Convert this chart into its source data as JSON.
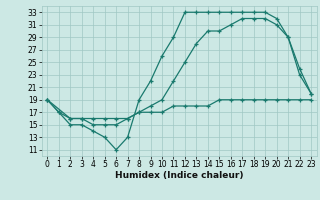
{
  "title": "",
  "xlabel": "Humidex (Indice chaleur)",
  "bg_color": "#cce8e4",
  "grid_color": "#a0c8c4",
  "line_color": "#1a7a6e",
  "xlim": [
    -0.5,
    23.5
  ],
  "ylim": [
    10,
    34
  ],
  "xticks": [
    0,
    1,
    2,
    3,
    4,
    5,
    6,
    7,
    8,
    9,
    10,
    11,
    12,
    13,
    14,
    15,
    16,
    17,
    18,
    19,
    20,
    21,
    22,
    23
  ],
  "yticks": [
    11,
    13,
    15,
    17,
    19,
    21,
    23,
    25,
    27,
    29,
    31,
    33
  ],
  "line1_x": [
    0,
    1,
    2,
    3,
    4,
    5,
    6,
    7,
    8,
    9,
    10,
    11,
    12,
    13,
    14,
    15,
    16,
    17,
    18,
    19,
    20,
    21,
    22,
    23
  ],
  "line1_y": [
    19,
    17,
    15,
    15,
    14,
    13,
    11,
    13,
    19,
    22,
    26,
    29,
    33,
    33,
    33,
    33,
    33,
    33,
    33,
    33,
    32,
    29,
    23,
    20
  ],
  "line2_x": [
    0,
    1,
    2,
    3,
    4,
    5,
    6,
    7,
    8,
    9,
    10,
    11,
    12,
    13,
    14,
    15,
    16,
    17,
    18,
    19,
    20,
    21,
    22,
    23
  ],
  "line2_y": [
    19,
    17,
    16,
    16,
    16,
    16,
    16,
    16,
    17,
    17,
    17,
    18,
    18,
    18,
    18,
    19,
    19,
    19,
    19,
    19,
    19,
    19,
    19,
    19
  ],
  "line3_x": [
    0,
    2,
    3,
    4,
    5,
    6,
    7,
    8,
    9,
    10,
    11,
    12,
    13,
    14,
    15,
    16,
    17,
    18,
    19,
    20,
    21,
    22,
    23
  ],
  "line3_y": [
    19,
    16,
    16,
    15,
    15,
    15,
    16,
    17,
    18,
    19,
    22,
    25,
    28,
    30,
    30,
    31,
    32,
    32,
    32,
    31,
    29,
    24,
    20
  ],
  "tick_fontsize": 5.5,
  "xlabel_fontsize": 6.5,
  "lw": 0.9,
  "ms": 2.5
}
